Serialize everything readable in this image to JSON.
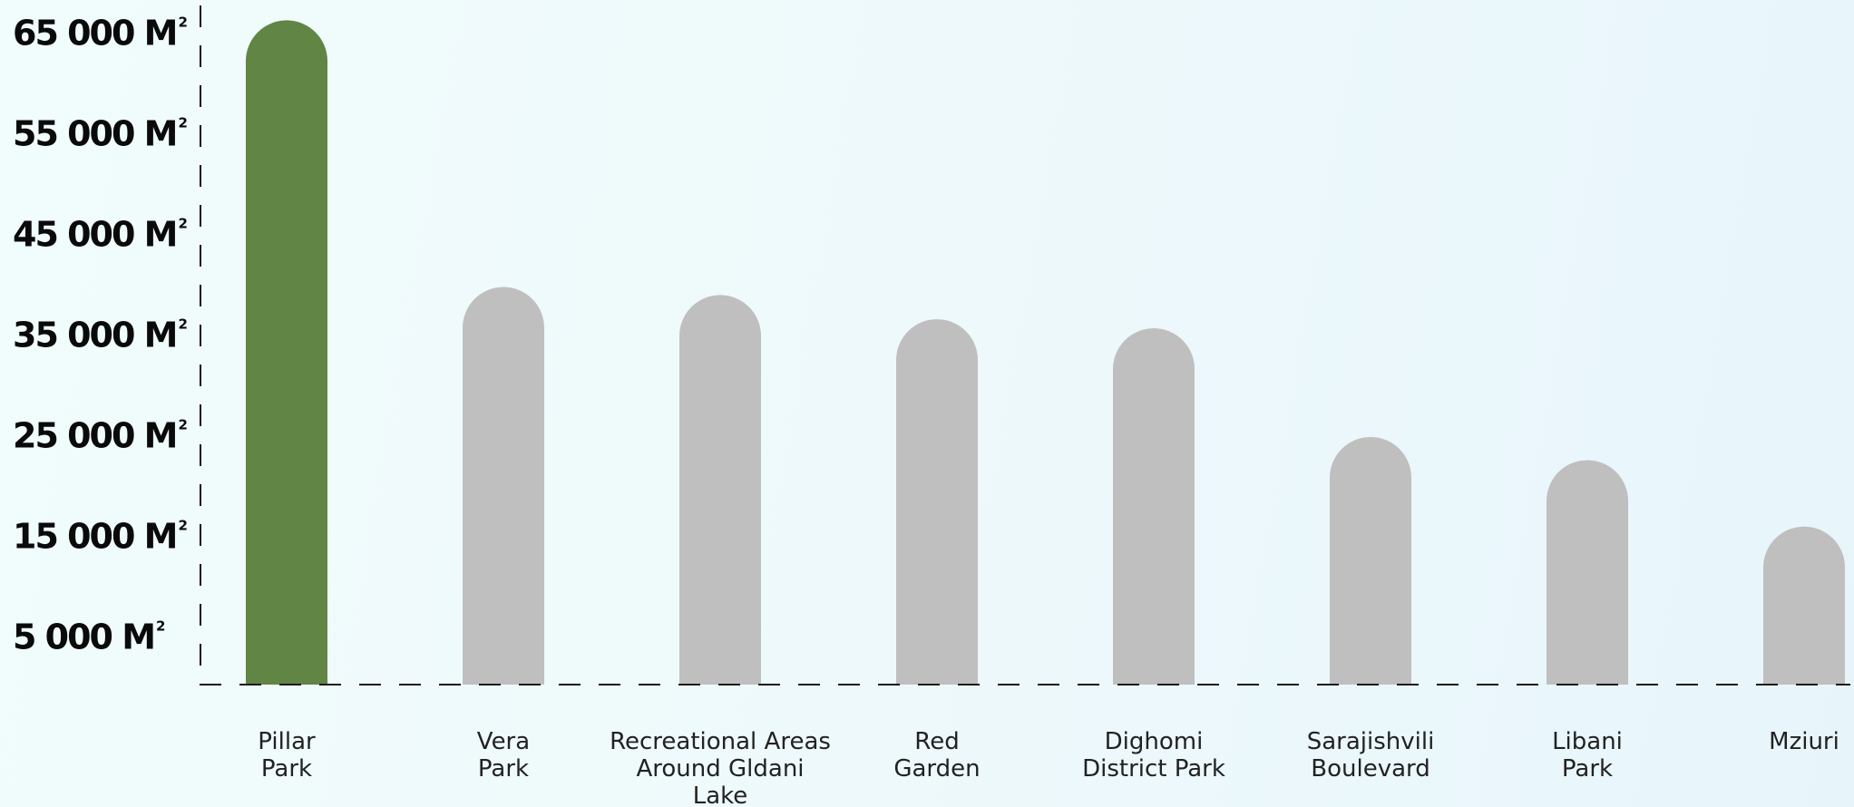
{
  "chart_data": {
    "type": "bar",
    "categories": [
      [
        "Pillar",
        "Park"
      ],
      [
        "Vera",
        "Park"
      ],
      [
        "Recreational Areas",
        "Around Gldani",
        "Lake"
      ],
      [
        "Red",
        "Garden"
      ],
      [
        "Dighomi",
        "District Park"
      ],
      [
        "Sarajishvili",
        "Boulevard"
      ],
      [
        "Libani",
        "Park"
      ],
      [
        "Mziuri"
      ]
    ],
    "values": [
      66000,
      39500,
      38700,
      36300,
      35400,
      24600,
      22300,
      15700
    ],
    "y_ticks": [
      5000,
      15000,
      25000,
      35000,
      45000,
      55000,
      65000
    ],
    "y_tick_labels": [
      "5 000 M",
      "15 000 M",
      "25 000 M",
      "35 000 M",
      "45 000 M",
      "55 000 M",
      "65 000 M"
    ],
    "y_tick_superscript": "2",
    "ylim": [
      0,
      68000
    ],
    "highlight_index": 0,
    "colors": {
      "highlight": "#618544",
      "default": "#bfbfbf",
      "axis": "#1a1a1a"
    },
    "grid": false
  }
}
